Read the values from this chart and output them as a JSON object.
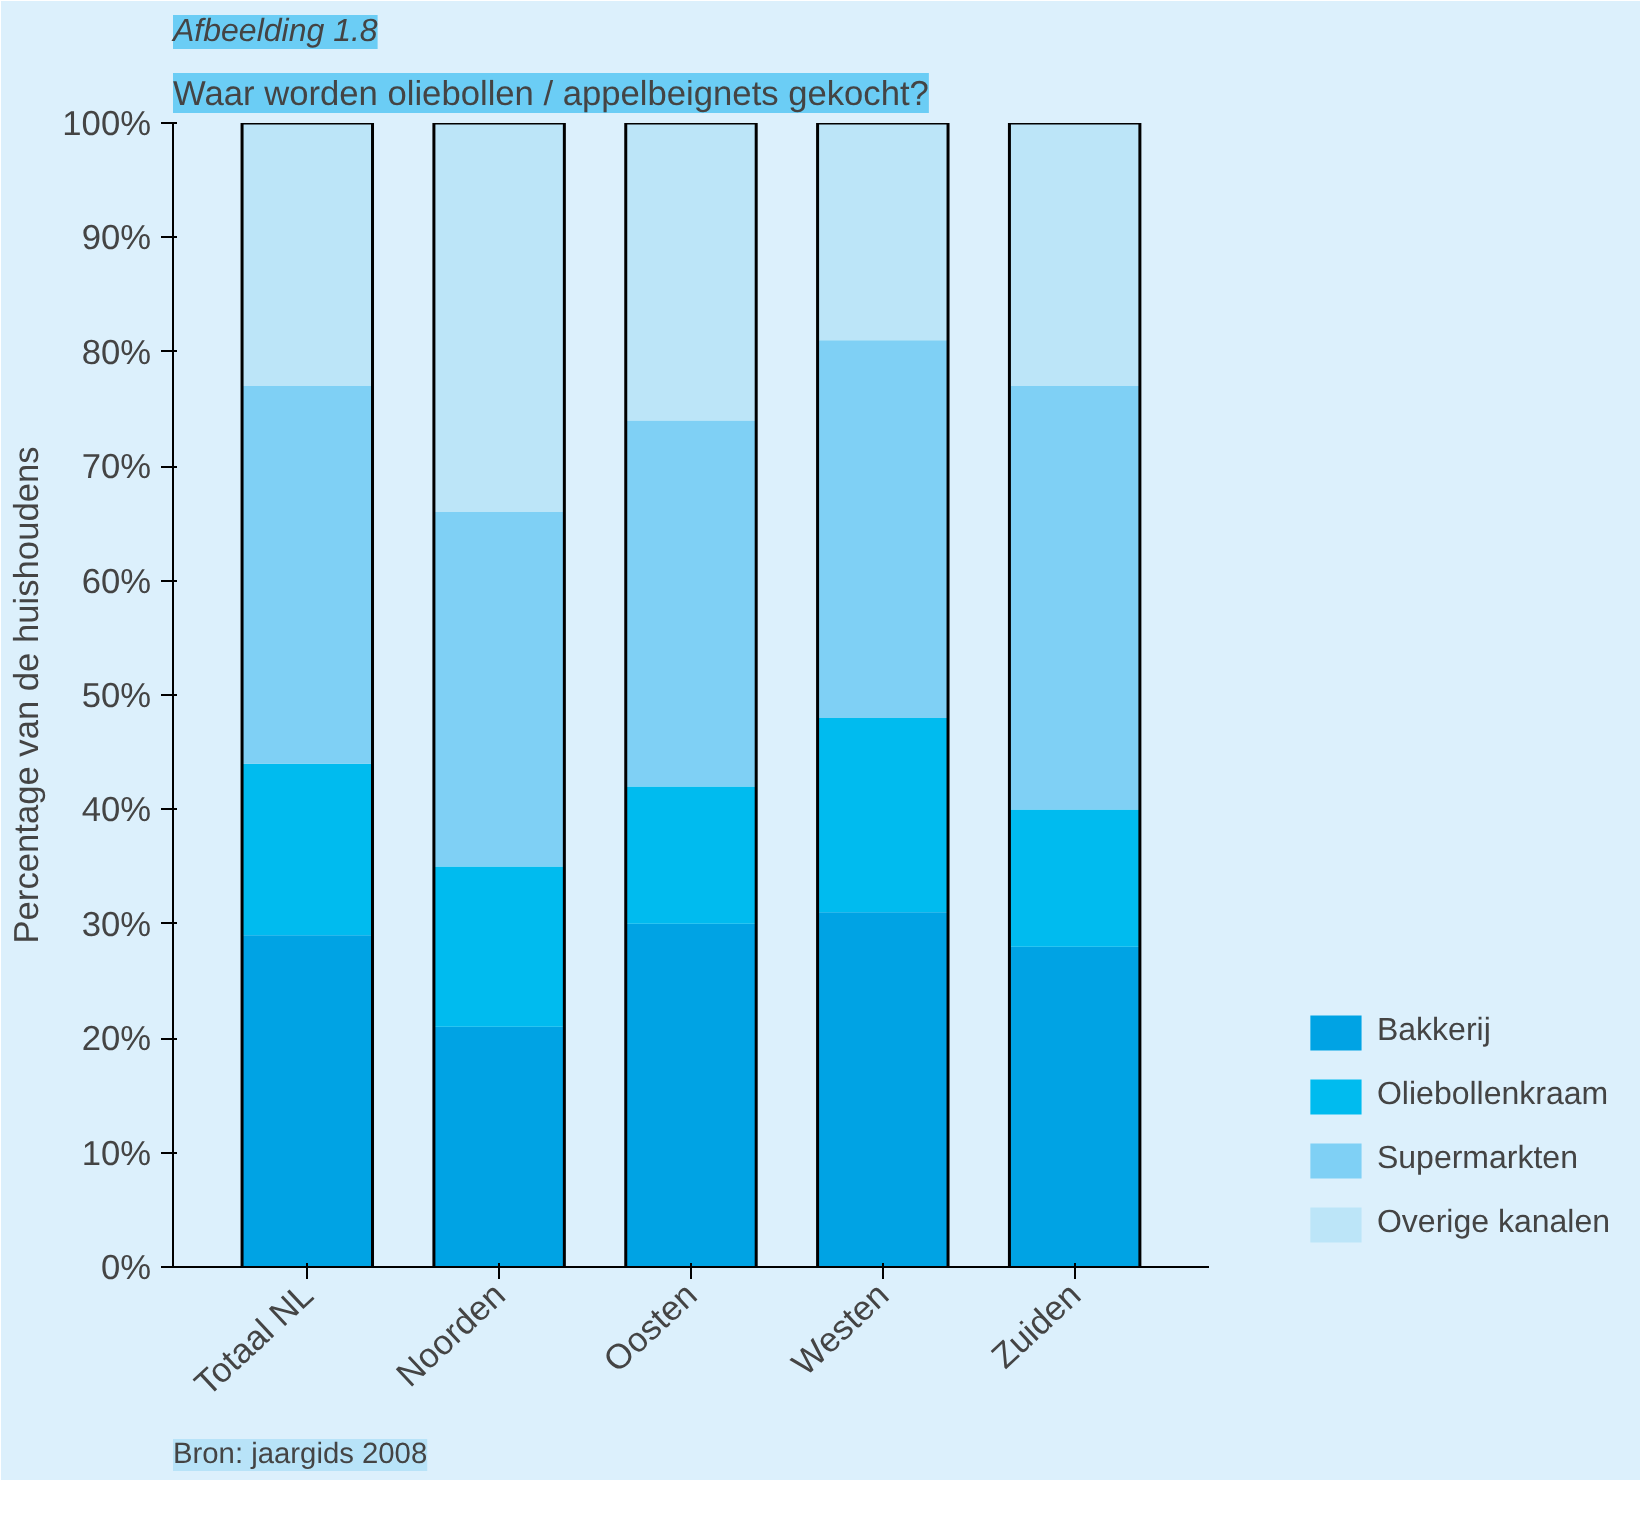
{
  "chart_data": {
    "type": "bar",
    "stacked": true,
    "title": "Waar worden oliebollen / appelbeignets gekocht?",
    "ylabel": "Percentage van de huishoudens",
    "categories": [
      "Totaal NL",
      "Noorden",
      "Oosten",
      "Westen",
      "Zuiden"
    ],
    "series": [
      {
        "name": "Bakkerij",
        "color": "#00a3e4",
        "values": [
          29,
          21,
          30,
          31,
          28
        ]
      },
      {
        "name": "Oliebollenkraam",
        "color": "#00bbef",
        "values": [
          15,
          14,
          12,
          17,
          12
        ]
      },
      {
        "name": "Supermarkten",
        "color": "#7fd0f5",
        "values": [
          33,
          31,
          32,
          33,
          37
        ]
      },
      {
        "name": "Overige kanalen",
        "color": "#bce5f8",
        "values": [
          23,
          34,
          26,
          19,
          23
        ]
      }
    ],
    "ylim": [
      0,
      100
    ],
    "yticks": [
      {
        "value": 0,
        "label": "0%"
      },
      {
        "value": 10,
        "label": "10%"
      },
      {
        "value": 20,
        "label": "20%"
      },
      {
        "value": 30,
        "label": "30%"
      },
      {
        "value": 40,
        "label": "40%"
      },
      {
        "value": 50,
        "label": "50%"
      },
      {
        "value": 60,
        "label": "60%"
      },
      {
        "value": 70,
        "label": "70%"
      },
      {
        "value": 80,
        "label": "80%"
      },
      {
        "value": 90,
        "label": "90%"
      },
      {
        "value": 100,
        "label": "100%"
      }
    ],
    "grid": false,
    "legend": "bottom right",
    "annotations": [
      "Afbeelding 1.8",
      "Bron: jaargids 2008"
    ]
  }
}
